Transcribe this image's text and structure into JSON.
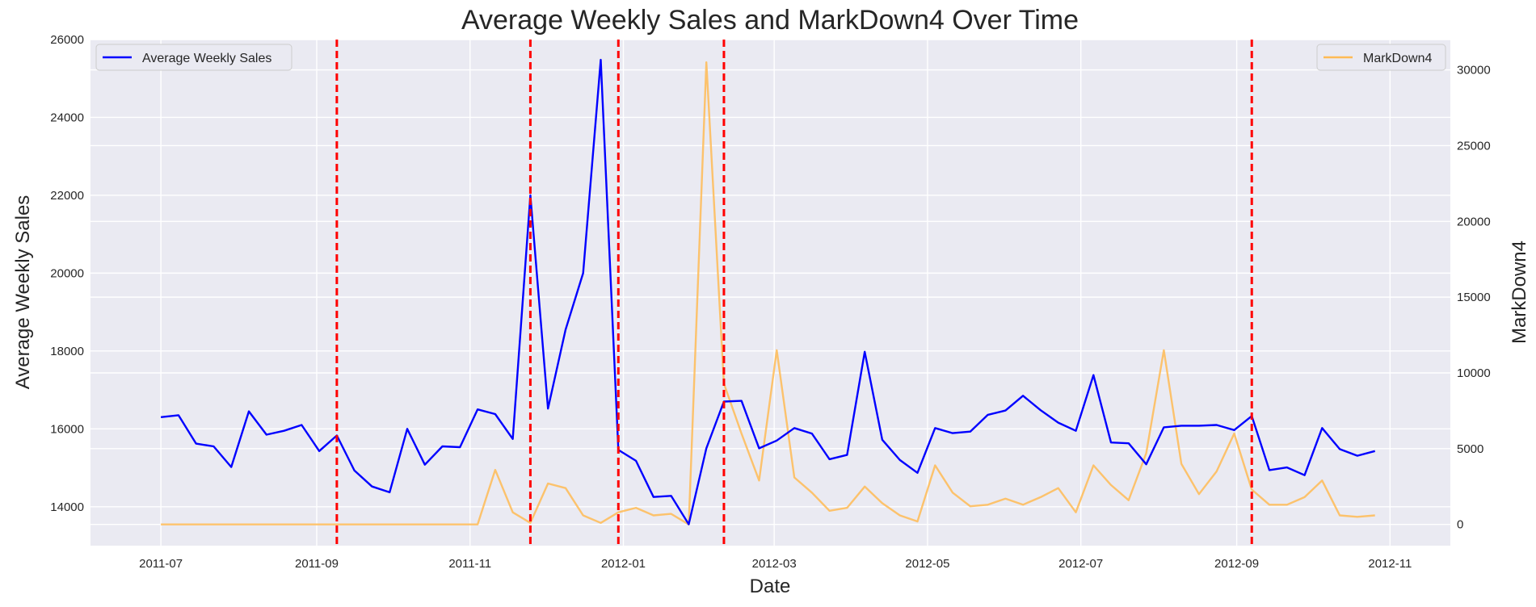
{
  "chart_data": {
    "type": "line",
    "title": "Average Weekly Sales and MarkDown4 Over Time",
    "xlabel": "Date",
    "ylabel_left": "Average Weekly Sales",
    "ylabel_right": "MarkDown4",
    "x_ticks": [
      "2011-07",
      "2011-09",
      "2011-11",
      "2012-01",
      "2012-03",
      "2012-05",
      "2012-07",
      "2012-09",
      "2012-11"
    ],
    "y_left_ticks": [
      14000,
      16000,
      18000,
      20000,
      22000,
      24000,
      26000
    ],
    "y_right_ticks": [
      0,
      5000,
      10000,
      15000,
      20000,
      25000,
      30000
    ],
    "y_left_range": [
      13000,
      26000
    ],
    "y_right_range": [
      -1400,
      32000
    ],
    "x_range": [
      "2011-06-03",
      "2012-11-25"
    ],
    "grid": true,
    "holiday_markers": [
      "2011-09-09",
      "2011-11-25",
      "2011-12-30",
      "2012-02-10",
      "2012-09-07"
    ],
    "series": [
      {
        "name": "Average Weekly Sales",
        "axis": "left",
        "color": "#0000ff",
        "legend": "top-left",
        "x": [
          "2011-07-01",
          "2011-07-08",
          "2011-07-15",
          "2011-07-22",
          "2011-07-29",
          "2011-08-05",
          "2011-08-12",
          "2011-08-19",
          "2011-08-26",
          "2011-09-02",
          "2011-09-09",
          "2011-09-16",
          "2011-09-23",
          "2011-09-30",
          "2011-10-07",
          "2011-10-14",
          "2011-10-21",
          "2011-10-28",
          "2011-11-04",
          "2011-11-11",
          "2011-11-18",
          "2011-11-25",
          "2011-12-02",
          "2011-12-09",
          "2011-12-16",
          "2011-12-23",
          "2011-12-30",
          "2012-01-06",
          "2012-01-13",
          "2012-01-20",
          "2012-01-27",
          "2012-02-03",
          "2012-02-10",
          "2012-02-17",
          "2012-02-24",
          "2012-03-02",
          "2012-03-09",
          "2012-03-16",
          "2012-03-23",
          "2012-03-30",
          "2012-04-06",
          "2012-04-13",
          "2012-04-20",
          "2012-04-27",
          "2012-05-04",
          "2012-05-11",
          "2012-05-18",
          "2012-05-25",
          "2012-06-01",
          "2012-06-08",
          "2012-06-15",
          "2012-06-22",
          "2012-06-29",
          "2012-07-06",
          "2012-07-13",
          "2012-07-20",
          "2012-07-27",
          "2012-08-03",
          "2012-08-10",
          "2012-08-17",
          "2012-08-24",
          "2012-08-31",
          "2012-09-07",
          "2012-09-14",
          "2012-09-21",
          "2012-09-28",
          "2012-10-05",
          "2012-10-12",
          "2012-10-19",
          "2012-10-26"
        ],
        "values": [
          16300,
          16350,
          15620,
          15550,
          15020,
          16450,
          15850,
          15950,
          16100,
          15430,
          15830,
          14930,
          14520,
          14370,
          16000,
          15080,
          15550,
          15530,
          16500,
          16380,
          15740,
          22000,
          16520,
          18550,
          20000,
          25480,
          15460,
          15180,
          14250,
          14280,
          13550,
          15500,
          16700,
          16720,
          15500,
          15700,
          16020,
          15880,
          15220,
          15330,
          17980,
          15720,
          15200,
          14870,
          16020,
          15890,
          15930,
          16360,
          16470,
          16850,
          16480,
          16160,
          15950,
          17380,
          15650,
          15630,
          15090,
          16040,
          16080,
          16080,
          16100,
          15970,
          16330,
          14940,
          15010,
          14810,
          16020,
          15480,
          15310,
          15430
        ]
      },
      {
        "name": "MarkDown4",
        "axis": "right",
        "color": "#ffbb55",
        "legend": "top-right",
        "x": [
          "2011-07-01",
          "2011-07-08",
          "2011-07-15",
          "2011-07-22",
          "2011-07-29",
          "2011-08-05",
          "2011-08-12",
          "2011-08-19",
          "2011-08-26",
          "2011-09-02",
          "2011-09-09",
          "2011-09-16",
          "2011-09-23",
          "2011-09-30",
          "2011-10-07",
          "2011-10-14",
          "2011-10-21",
          "2011-10-28",
          "2011-11-04",
          "2011-11-11",
          "2011-11-18",
          "2011-11-25",
          "2011-12-02",
          "2011-12-09",
          "2011-12-16",
          "2011-12-23",
          "2011-12-30",
          "2012-01-06",
          "2012-01-13",
          "2012-01-20",
          "2012-01-27",
          "2012-02-03",
          "2012-02-10",
          "2012-02-17",
          "2012-02-24",
          "2012-03-02",
          "2012-03-09",
          "2012-03-16",
          "2012-03-23",
          "2012-03-30",
          "2012-04-06",
          "2012-04-13",
          "2012-04-20",
          "2012-04-27",
          "2012-05-04",
          "2012-05-11",
          "2012-05-18",
          "2012-05-25",
          "2012-06-01",
          "2012-06-08",
          "2012-06-15",
          "2012-06-22",
          "2012-06-29",
          "2012-07-06",
          "2012-07-13",
          "2012-07-20",
          "2012-07-27",
          "2012-08-03",
          "2012-08-10",
          "2012-08-17",
          "2012-08-24",
          "2012-08-31",
          "2012-09-07",
          "2012-09-14",
          "2012-09-21",
          "2012-09-28",
          "2012-10-05",
          "2012-10-12",
          "2012-10-19",
          "2012-10-26"
        ],
        "values": [
          0,
          0,
          0,
          0,
          0,
          0,
          0,
          0,
          0,
          0,
          0,
          0,
          0,
          0,
          0,
          0,
          0,
          0,
          0,
          3600,
          800,
          100,
          2700,
          2400,
          600,
          100,
          800,
          1100,
          600,
          700,
          0,
          30500,
          9300,
          6000,
          2900,
          11500,
          3100,
          2100,
          900,
          1100,
          2500,
          1400,
          600,
          200,
          3900,
          2100,
          1200,
          1300,
          1700,
          1300,
          1800,
          2400,
          800,
          3900,
          2600,
          1600,
          4700,
          11500,
          4000,
          2000,
          3500,
          6000,
          2300,
          1300,
          1300,
          1800,
          2900,
          600,
          500,
          600
        ]
      }
    ]
  }
}
